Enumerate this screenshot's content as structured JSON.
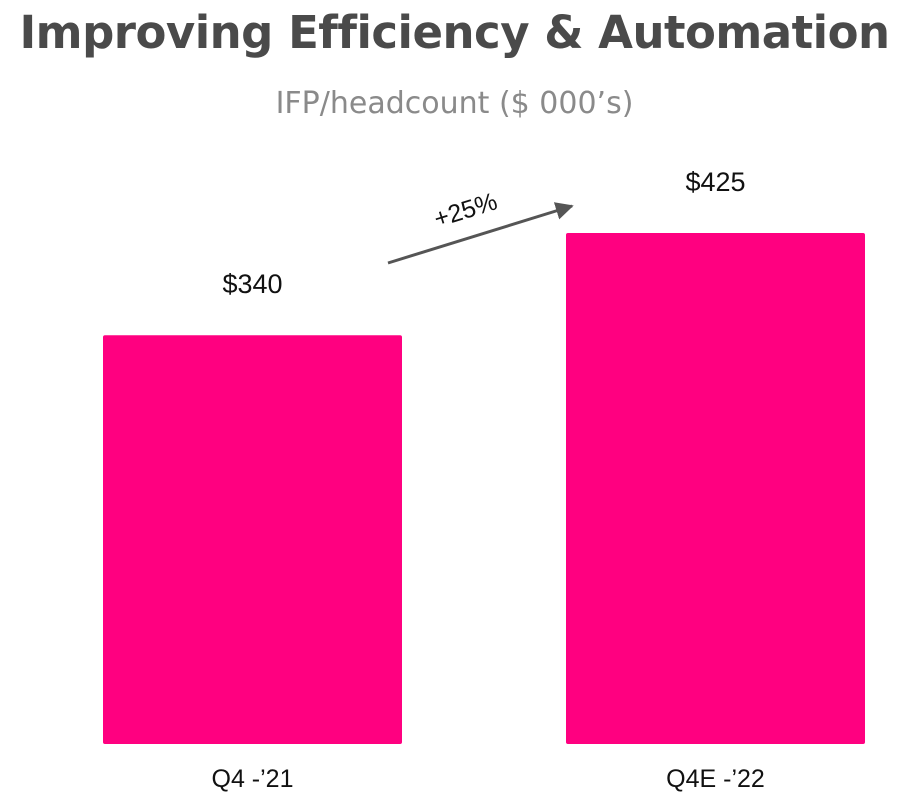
{
  "header": {
    "title": "Improving Efficiency & Automation",
    "subtitle": "IFP/headcount ($ 000’s)"
  },
  "chart_data": {
    "type": "bar",
    "categories": [
      "Q4 -’21",
      "Q4E -’22"
    ],
    "values": [
      340,
      425
    ],
    "value_labels": [
      "$340",
      "$425"
    ],
    "title": "Improving Efficiency & Automation",
    "subtitle": "IFP/headcount ($ 000’s)",
    "xlabel": "",
    "ylabel": "",
    "ylim": [
      0,
      425
    ],
    "grid": false,
    "legend": "none",
    "bar_color": "#ff0080",
    "annotation": {
      "text": "+25%",
      "type": "arrow",
      "from_category": "Q4 -’21",
      "to_category": "Q4E -’22"
    }
  }
}
